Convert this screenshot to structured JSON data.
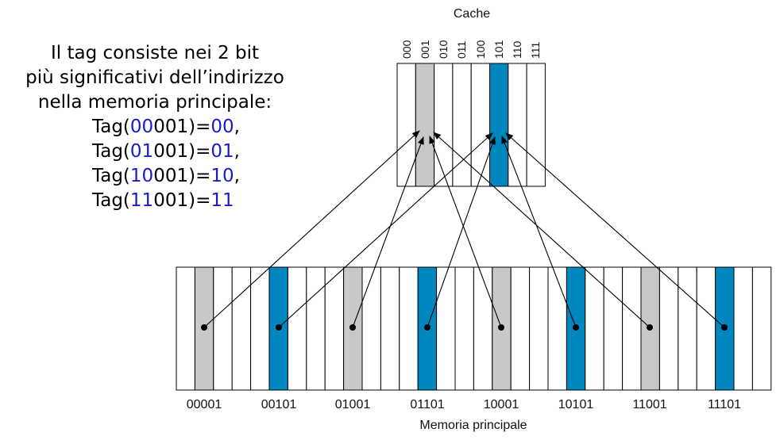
{
  "explanation": {
    "lines": [
      "Il tag consiste nei 2 bit",
      "più significativi dell’indirizzo",
      "nella memoria principale:"
    ],
    "tags": [
      {
        "prefix": "Tag(",
        "hi": "00",
        "rest": "001)=",
        "value": "00",
        "trail": ","
      },
      {
        "prefix": "Tag(",
        "hi": "01",
        "rest": "001)=",
        "value": "01",
        "trail": ","
      },
      {
        "prefix": "Tag(",
        "hi": "10",
        "rest": "001)=",
        "value": "10",
        "trail": ","
      },
      {
        "prefix": "Tag(",
        "hi": "11",
        "rest": "001)=",
        "value": "11",
        "trail": ""
      }
    ]
  },
  "cache": {
    "title": "Cache",
    "slots": [
      "000",
      "001",
      "010",
      "011",
      "100",
      "101",
      "110",
      "111"
    ],
    "gray_slot": "001",
    "blue_slot": "101"
  },
  "memory": {
    "title": "Memoria principale",
    "addresses": [
      "00001",
      "00101",
      "01001",
      "01101",
      "10001",
      "10101",
      "11001",
      "11101"
    ]
  },
  "colors": {
    "gray": "#c8c8c8",
    "blue": "#0087c0",
    "line": "#000000",
    "tag_highlight": "#1a1acc"
  }
}
